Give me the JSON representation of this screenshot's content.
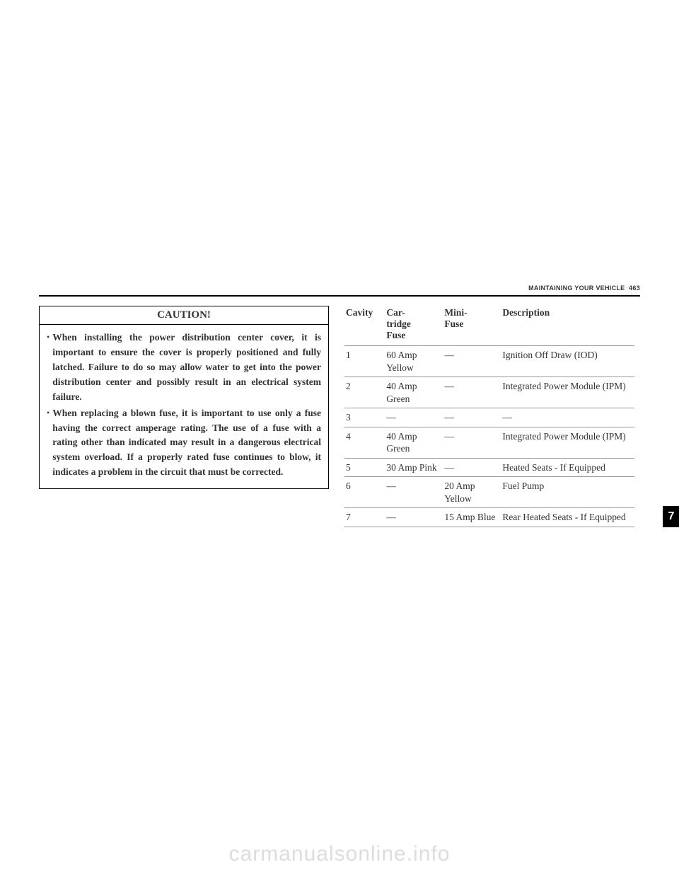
{
  "header": {
    "section_title": "MAINTAINING YOUR VEHICLE",
    "page_number": "463"
  },
  "caution": {
    "title": "CAUTION!",
    "items": [
      "When installing the power distribution center cover, it is important to ensure the cover is properly positioned and fully latched. Failure to do so may allow water to get into the power distribution center and possibly result in an electrical system failure.",
      "When replacing a blown fuse, it is important to use only a fuse having the correct amperage rating. The use of a fuse with a rating other than indicated may result in a dangerous electrical system overload. If a properly rated fuse continues to blow, it indicates a problem in the circuit that must be corrected."
    ]
  },
  "fuse_table": {
    "headers": {
      "cavity": "Cavity",
      "cartridge": "Cartridge Fuse",
      "mini": "Mini-Fuse",
      "description": "Description"
    },
    "rows": [
      {
        "cavity": "1",
        "cartridge": "60 Amp Yellow",
        "mini": "—",
        "description": "Ignition Off Draw (IOD)"
      },
      {
        "cavity": "2",
        "cartridge": "40 Amp Green",
        "mini": "—",
        "description": "Integrated Power Module (IPM)"
      },
      {
        "cavity": "3",
        "cartridge": "—",
        "mini": "—",
        "description": "—"
      },
      {
        "cavity": "4",
        "cartridge": "40 Amp Green",
        "mini": "—",
        "description": "Integrated Power Module (IPM)"
      },
      {
        "cavity": "5",
        "cartridge": "30 Amp Pink",
        "mini": "—",
        "description": "Heated Seats - If Equipped"
      },
      {
        "cavity": "6",
        "cartridge": "—",
        "mini": "20 Amp Yellow",
        "description": "Fuel Pump"
      },
      {
        "cavity": "7",
        "cartridge": "—",
        "mini": "15 Amp Blue",
        "description": "Rear Heated Seats - If Equipped"
      }
    ]
  },
  "page_tab": "7",
  "watermark": "carmanualsonline.info"
}
